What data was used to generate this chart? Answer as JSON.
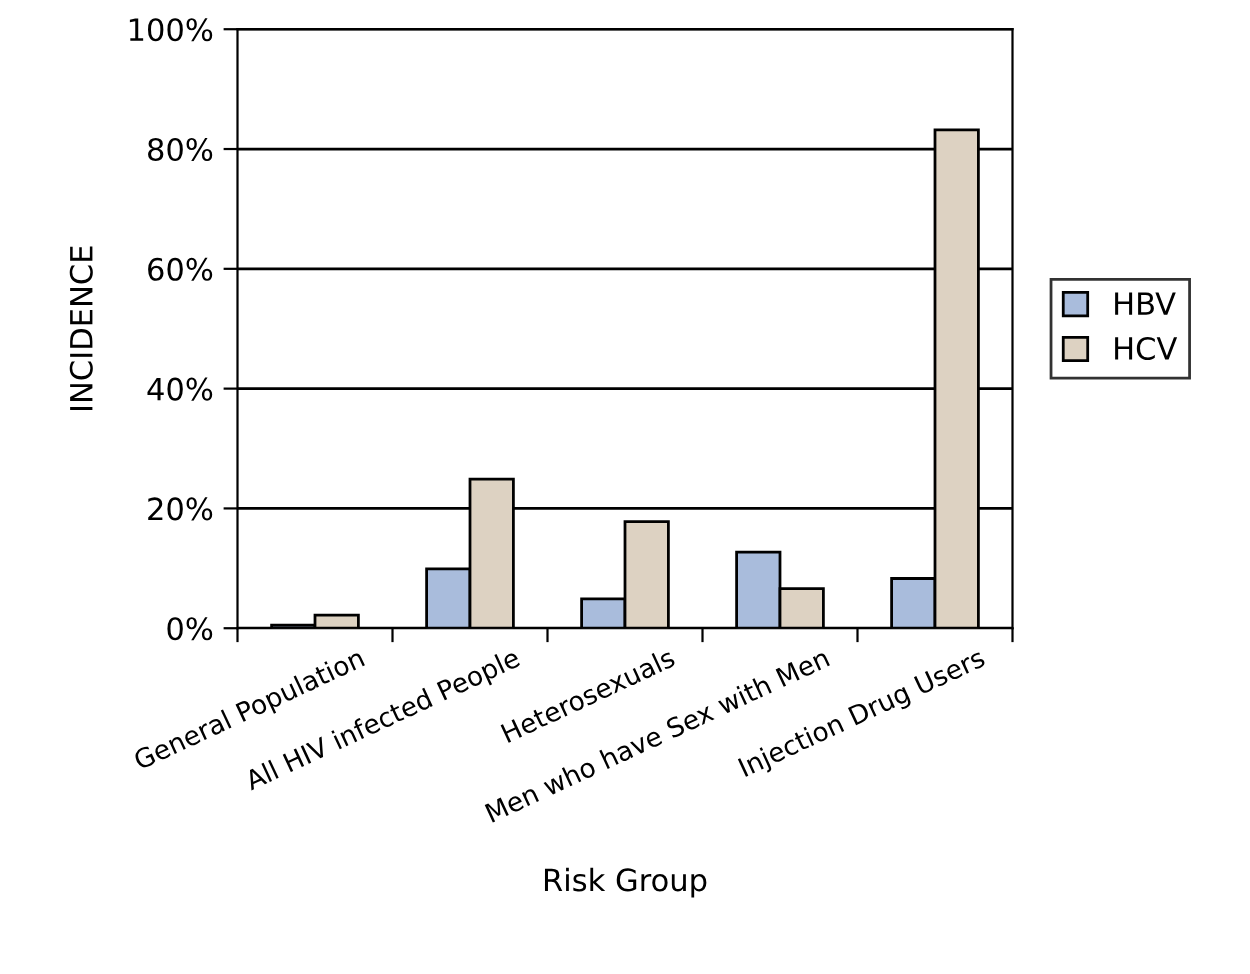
{
  "chart_data": {
    "type": "bar",
    "xlabel": "Risk Group",
    "ylabel": "INCIDENCE",
    "categories": [
      "General Population",
      "All HIV infected People",
      "Heterosexuals",
      "Men who have Sex with Men",
      "Injection Drug Users"
    ],
    "series": [
      {
        "name": "HBV",
        "color": "#a9bcdc",
        "values": [
          0.5,
          9.9,
          4.9,
          12.7,
          8.3
        ]
      },
      {
        "name": "HCV",
        "color": "#ddd2c2",
        "values": [
          2.2,
          24.9,
          17.8,
          6.6,
          83.2
        ]
      }
    ],
    "ylim": [
      0,
      100
    ],
    "yticks": [
      {
        "value": 0,
        "label": "0%"
      },
      {
        "value": 20,
        "label": "20%"
      },
      {
        "value": 40,
        "label": "40%"
      },
      {
        "value": 60,
        "label": "60%"
      },
      {
        "value": 80,
        "label": "80%"
      },
      {
        "value": 100,
        "label": "100%"
      }
    ],
    "grid": "y",
    "legend": "right"
  }
}
